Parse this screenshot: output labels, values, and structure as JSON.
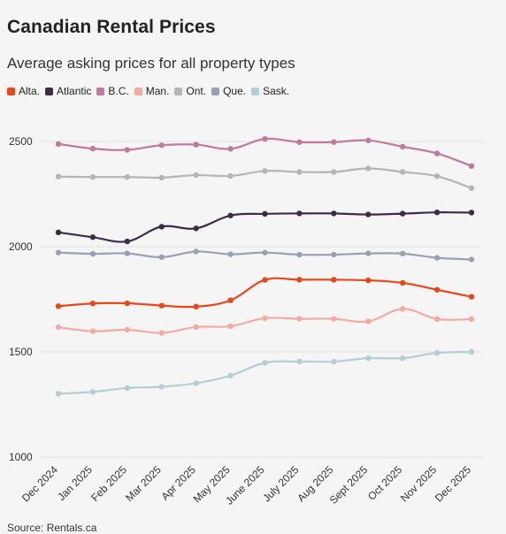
{
  "header": {
    "title": "Canadian Rental Prices",
    "subtitle": "Average asking prices for all property types"
  },
  "source": "Source: Rentals.ca",
  "chart_data": {
    "type": "line",
    "title": "Canadian Rental Prices",
    "subtitle": "Average asking prices for all property types",
    "xlabel": "",
    "ylabel": "",
    "ylim": [
      1000,
      2600
    ],
    "yticks": [
      1000,
      1500,
      2000,
      2500
    ],
    "grid": true,
    "legend_position": "top",
    "categories": [
      "Dec 2024",
      "Jan 2025",
      "Feb 2025",
      "Mar 2025",
      "Apr 2025",
      "May 2025",
      "June 2025",
      "July 2025",
      "Aug 2025",
      "Sept 2025",
      "Oct 2025",
      "Nov 2025",
      "Dec 2025"
    ],
    "series": [
      {
        "name": "Alta.",
        "color": "#e8471a",
        "values": [
          1717,
          1730,
          1731,
          1720,
          1715,
          1745,
          1842,
          1843,
          1843,
          1840,
          1828,
          1795,
          1762
        ]
      },
      {
        "name": "Atlantic",
        "color": "#3b2d4a",
        "values": [
          2068,
          2045,
          2025,
          2095,
          2087,
          2148,
          2156,
          2158,
          2158,
          2153,
          2157,
          2163,
          2162
        ]
      },
      {
        "name": "B.C.",
        "color": "#c07a9e",
        "values": [
          2488,
          2466,
          2460,
          2482,
          2485,
          2465,
          2512,
          2497,
          2497,
          2505,
          2475,
          2443,
          2383
        ]
      },
      {
        "name": "Man.",
        "color": "#f4aaa2",
        "values": [
          1617,
          1598,
          1605,
          1590,
          1618,
          1622,
          1660,
          1657,
          1657,
          1645,
          1704,
          1656,
          1656
        ]
      },
      {
        "name": "Ont.",
        "color": "#b5b5b5",
        "values": [
          2333,
          2331,
          2331,
          2328,
          2340,
          2336,
          2360,
          2355,
          2355,
          2372,
          2355,
          2335,
          2278
        ]
      },
      {
        "name": "Que.",
        "color": "#9aa1b2",
        "values": [
          1972,
          1966,
          1968,
          1950,
          1977,
          1964,
          1972,
          1962,
          1962,
          1968,
          1967,
          1947,
          1939
        ]
      },
      {
        "name": "Sask.",
        "color": "#b5ced4",
        "values": [
          1301,
          1310,
          1328,
          1334,
          1351,
          1387,
          1448,
          1454,
          1454,
          1470,
          1470,
          1495,
          1500
        ]
      }
    ]
  }
}
